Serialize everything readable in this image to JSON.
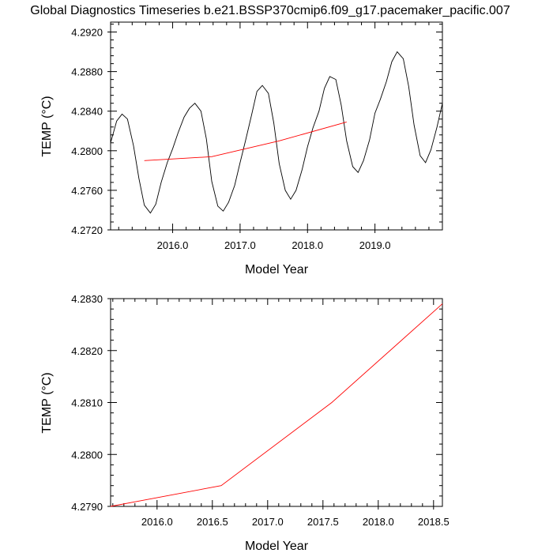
{
  "page_title": "Global Diagnostics Timeseries b.e21.BSSP370cmip6.f09_g17.pacemaker_pacific.007",
  "chart_data": [
    {
      "type": "line",
      "xlabel": "Model Year",
      "ylabel": "TEMP (°C)",
      "xlim": [
        2015.08,
        2020.0
      ],
      "ylim": [
        4.272,
        4.293
      ],
      "xticks": [
        2016.0,
        2017.0,
        2018.0,
        2019.0
      ],
      "xtick_labels": [
        "2016.0",
        "2017.0",
        "2018.0",
        "2019.0"
      ],
      "yticks": [
        4.272,
        4.276,
        4.28,
        4.284,
        4.288,
        4.292
      ],
      "ytick_labels": [
        "4.2720",
        "4.2760",
        "4.2800",
        "4.2840",
        "4.2880",
        "4.2920"
      ],
      "grid": false,
      "legend": "none",
      "series": [
        {
          "color": "#000000",
          "x": [
            2015.08,
            2015.17,
            2015.25,
            2015.33,
            2015.42,
            2015.5,
            2015.58,
            2015.67,
            2015.75,
            2015.83,
            2015.92,
            2016.0,
            2016.08,
            2016.17,
            2016.25,
            2016.33,
            2016.42,
            2016.5,
            2016.58,
            2016.67,
            2016.75,
            2016.83,
            2016.92,
            2017.0,
            2017.08,
            2017.17,
            2017.25,
            2017.33,
            2017.42,
            2017.5,
            2017.58,
            2017.67,
            2017.75,
            2017.83,
            2017.92,
            2018.0,
            2018.08,
            2018.17,
            2018.25,
            2018.33,
            2018.42,
            2018.5,
            2018.58,
            2018.67,
            2018.75,
            2018.83,
            2018.92,
            2019.0,
            2019.08,
            2019.17,
            2019.25,
            2019.33,
            2019.42,
            2019.5,
            2019.58,
            2019.67,
            2019.75,
            2019.83,
            2019.92,
            2020.0
          ],
          "values": [
            4.2808,
            4.283,
            4.2837,
            4.2832,
            4.2805,
            4.2772,
            4.2745,
            4.2737,
            4.2746,
            4.2768,
            4.2788,
            4.2802,
            4.2818,
            4.2834,
            4.2843,
            4.2848,
            4.284,
            4.2812,
            4.2769,
            4.2744,
            4.2739,
            4.2748,
            4.2765,
            4.2788,
            4.281,
            4.2836,
            4.286,
            4.2866,
            4.2858,
            4.2828,
            4.2787,
            4.276,
            4.2751,
            4.276,
            4.2781,
            4.2804,
            4.2823,
            4.284,
            4.2863,
            4.2875,
            4.2872,
            4.2846,
            4.281,
            4.2784,
            4.2778,
            4.279,
            4.2811,
            4.2838,
            4.2852,
            4.287,
            4.289,
            4.29,
            4.2893,
            4.2865,
            4.2826,
            4.2795,
            4.2788,
            4.2801,
            4.2824,
            4.2848
          ]
        },
        {
          "color": "#ff0000",
          "x": [
            2015.58,
            2016.58,
            2017.58,
            2018.58
          ],
          "values": [
            4.279,
            4.2794,
            4.281,
            4.2829
          ]
        }
      ]
    },
    {
      "type": "line",
      "xlabel": "Model Year",
      "ylabel": "TEMP (°C)",
      "xlim": [
        2015.58,
        2018.58
      ],
      "ylim": [
        4.279,
        4.283
      ],
      "xticks": [
        2016.0,
        2016.5,
        2017.0,
        2017.5,
        2018.0,
        2018.5
      ],
      "xtick_labels": [
        "2016.0",
        "2016.5",
        "2017.0",
        "2017.5",
        "2018.0",
        "2018.5"
      ],
      "yticks": [
        4.279,
        4.28,
        4.281,
        4.282,
        4.283
      ],
      "ytick_labels": [
        "4.2790",
        "4.2800",
        "4.2810",
        "4.2820",
        "4.2830"
      ],
      "grid": false,
      "legend": "none",
      "series": [
        {
          "color": "#ff0000",
          "x": [
            2015.58,
            2016.58,
            2017.58,
            2018.58
          ],
          "values": [
            4.279,
            4.2794,
            4.281,
            4.2829
          ]
        }
      ]
    }
  ]
}
